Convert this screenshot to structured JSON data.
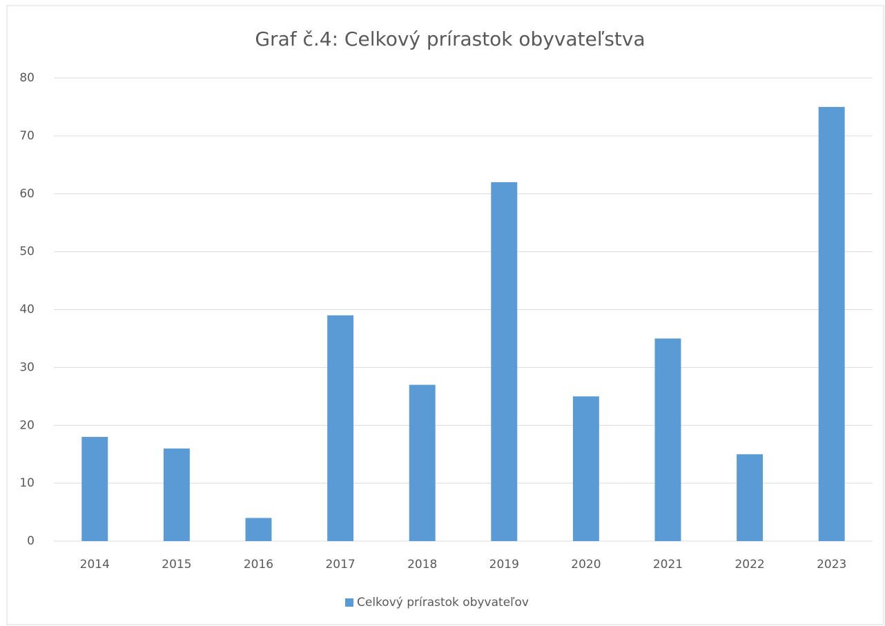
{
  "chart_data": {
    "type": "bar",
    "title": "Graf č.4: Celkový prírastok obyvateľstva",
    "categories": [
      "2014",
      "2015",
      "2016",
      "2017",
      "2018",
      "2019",
      "2020",
      "2021",
      "2022",
      "2023"
    ],
    "series": [
      {
        "name": "Celkový prírastok obyvateľov",
        "color": "#5b9bd5",
        "values": [
          18,
          16,
          4,
          39,
          27,
          62,
          25,
          35,
          15,
          75
        ]
      }
    ],
    "ylim": [
      0,
      80
    ],
    "yticks": [
      0,
      10,
      20,
      30,
      40,
      50,
      60,
      70,
      80
    ],
    "grid": true,
    "legend": "bottom"
  }
}
